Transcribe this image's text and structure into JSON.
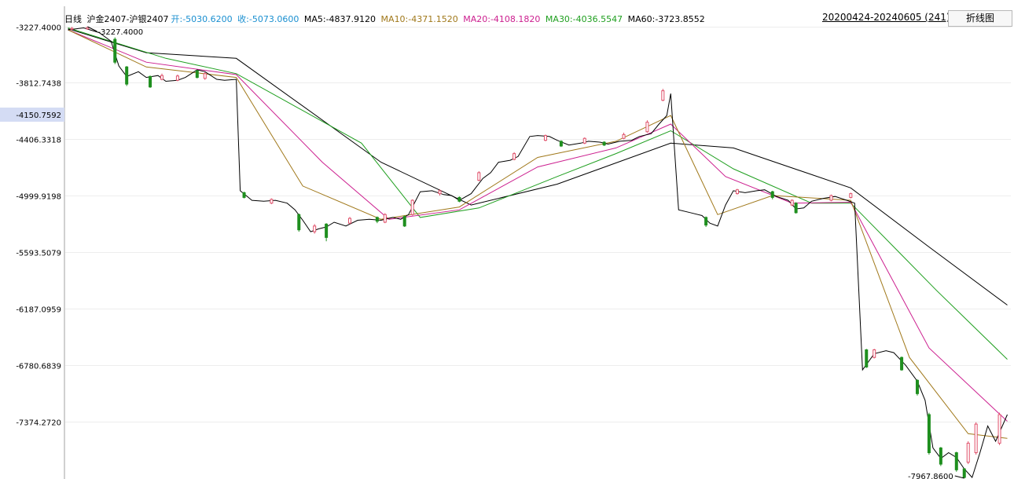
{
  "header": {
    "period": "日线",
    "symbol": "沪金2407-沪银2407",
    "open_label": "开:",
    "open_value": "-5030.6200",
    "close_label": "收:",
    "close_value": "-5073.0600",
    "ma5_label": "MA5:",
    "ma5_value": "-4837.9120",
    "ma10_label": "MA10:",
    "ma10_value": "-4371.1520",
    "ma20_label": "MA20:",
    "ma20_value": "-4108.1820",
    "ma30_label": "MA30:",
    "ma30_value": "-4036.5547",
    "ma60_label": "MA60:",
    "ma60_value": "-3723.8552",
    "range": "20200424-20240605 (241)",
    "toggle_button": "折线图"
  },
  "colors": {
    "up": "#e0506a",
    "down": "#1f8f1f",
    "open": "#1a8fd0",
    "close": "#1a8fd0",
    "ma5": "#000000",
    "ma10": "#a0781a",
    "ma20": "#cc1f8f",
    "ma30": "#1f9f1f",
    "ma60": "#000000",
    "crosshair_bg": "#d4dcf4"
  },
  "chart_data": {
    "type": "candlestick",
    "bars": 241,
    "y_ticks": [
      "-3227.4000",
      "-3812.7438",
      "-4406.3318",
      "-4999.9198",
      "-5593.5079",
      "-6187.0959",
      "-6780.6839",
      "-7374.2720"
    ],
    "ylim": [
      -8050,
      -3227.4
    ],
    "crosshair_value": "-4150.7592",
    "high_label": "-3227.4000",
    "low_label": "-7967.8600",
    "close_path": [
      [
        0,
        -3260
      ],
      [
        4,
        -3240
      ],
      [
        8,
        -3290
      ],
      [
        11,
        -3380
      ],
      [
        13,
        -3640
      ],
      [
        15,
        -3750
      ],
      [
        18,
        -3700
      ],
      [
        20,
        -3760
      ],
      [
        23,
        -3740
      ],
      [
        25,
        -3800
      ],
      [
        28,
        -3790
      ],
      [
        30,
        -3760
      ],
      [
        33,
        -3680
      ],
      [
        35,
        -3700
      ],
      [
        38,
        -3780
      ],
      [
        40,
        -3790
      ],
      [
        43,
        -3780
      ],
      [
        44,
        -4950
      ],
      [
        47,
        -5050
      ],
      [
        50,
        -5060
      ],
      [
        53,
        -5050
      ],
      [
        56,
        -5080
      ],
      [
        58,
        -5150
      ],
      [
        60,
        -5260
      ],
      [
        62,
        -5380
      ],
      [
        64,
        -5350
      ],
      [
        66,
        -5330
      ],
      [
        68,
        -5280
      ],
      [
        71,
        -5320
      ],
      [
        74,
        -5260
      ],
      [
        77,
        -5250
      ],
      [
        80,
        -5260
      ],
      [
        83,
        -5230
      ],
      [
        85,
        -5250
      ],
      [
        87,
        -5200
      ],
      [
        90,
        -4960
      ],
      [
        93,
        -4950
      ],
      [
        96,
        -4990
      ],
      [
        98,
        -5000
      ],
      [
        100,
        -5050
      ],
      [
        103,
        -4980
      ],
      [
        106,
        -4820
      ],
      [
        108,
        -4760
      ],
      [
        110,
        -4650
      ],
      [
        113,
        -4630
      ],
      [
        115,
        -4590
      ],
      [
        118,
        -4380
      ],
      [
        120,
        -4370
      ],
      [
        123,
        -4380
      ],
      [
        125,
        -4420
      ],
      [
        128,
        -4470
      ],
      [
        131,
        -4450
      ],
      [
        133,
        -4430
      ],
      [
        136,
        -4440
      ],
      [
        138,
        -4460
      ],
      [
        141,
        -4430
      ],
      [
        144,
        -4420
      ],
      [
        146,
        -4380
      ],
      [
        149,
        -4350
      ],
      [
        151,
        -4250
      ],
      [
        153,
        -4160
      ],
      [
        154,
        -3930
      ],
      [
        156,
        -5150
      ],
      [
        159,
        -5180
      ],
      [
        162,
        -5210
      ],
      [
        164,
        -5290
      ],
      [
        166,
        -5320
      ],
      [
        168,
        -5100
      ],
      [
        170,
        -4950
      ],
      [
        173,
        -4970
      ],
      [
        176,
        -4950
      ],
      [
        178,
        -4940
      ],
      [
        181,
        -5010
      ],
      [
        184,
        -5050
      ],
      [
        186,
        -5140
      ],
      [
        188,
        -5130
      ],
      [
        190,
        -5060
      ],
      [
        193,
        -5030
      ],
      [
        196,
        -5010
      ],
      [
        199,
        -5050
      ],
      [
        201,
        -5080
      ],
      [
        203,
        -6830
      ],
      [
        206,
        -6660
      ],
      [
        209,
        -6630
      ],
      [
        211,
        -6650
      ],
      [
        214,
        -6780
      ],
      [
        217,
        -6950
      ],
      [
        219,
        -7150
      ],
      [
        221,
        -7650
      ],
      [
        223,
        -7760
      ],
      [
        225,
        -7700
      ],
      [
        227,
        -7750
      ],
      [
        229,
        -7870
      ],
      [
        231,
        -7960
      ],
      [
        233,
        -7700
      ],
      [
        235,
        -7420
      ],
      [
        237,
        -7580
      ],
      [
        240,
        -7300
      ]
    ],
    "up_candles": [
      [
        1,
        -3255,
        -3245,
        -3230,
        -3265
      ],
      [
        5,
        -3250,
        -3235,
        -3227.4,
        -3260
      ],
      [
        24,
        -3780,
        -3740,
        -3720,
        -3790
      ],
      [
        28,
        -3790,
        -3745,
        -3730,
        -3800
      ],
      [
        35,
        -3770,
        -3720,
        -3705,
        -3785
      ],
      [
        52,
        -5080,
        -5040,
        -5030,
        -5090
      ],
      [
        63,
        -5380,
        -5320,
        -5300,
        -5400
      ],
      [
        72,
        -5290,
        -5240,
        -5225,
        -5300
      ],
      [
        81,
        -5280,
        -5200,
        -5185,
        -5290
      ],
      [
        88,
        -5200,
        -5050,
        -5040,
        -5210
      ],
      [
        95,
        -4980,
        -4950,
        -4935,
        -5000
      ],
      [
        105,
        -4840,
        -4760,
        -4745,
        -4850
      ],
      [
        114,
        -4620,
        -4560,
        -4545,
        -4630
      ],
      [
        122,
        -4420,
        -4370,
        -4360,
        -4430
      ],
      [
        132,
        -4450,
        -4400,
        -4390,
        -4460
      ],
      [
        142,
        -4400,
        -4360,
        -4340,
        -4410
      ],
      [
        148,
        -4330,
        -4230,
        -4210,
        -4340
      ],
      [
        152,
        -4000,
        -3900,
        -3880,
        -4010
      ],
      [
        171,
        -4980,
        -4940,
        -4930,
        -4990
      ],
      [
        185,
        -5100,
        -5050,
        -5040,
        -5110
      ],
      [
        195,
        -5050,
        -5000,
        -4990,
        -5060
      ],
      [
        200,
        -5020,
        -4980,
        -4970,
        -5030
      ],
      [
        206,
        -6700,
        -6620,
        -6610,
        -6710
      ],
      [
        230,
        -7800,
        -7600,
        -7580,
        -7820
      ],
      [
        232,
        -7700,
        -7400,
        -7380,
        -7720
      ],
      [
        238,
        -7600,
        -7300,
        -7280,
        -7620
      ]
    ],
    "down_candles": [
      [
        12,
        -3360,
        -3600,
        -3340,
        -3620
      ],
      [
        15,
        -3650,
        -3830,
        -3640,
        -3850
      ],
      [
        21,
        -3750,
        -3860,
        -3740,
        -3870
      ],
      [
        33,
        -3690,
        -3760,
        -3680,
        -3770
      ],
      [
        45,
        -4970,
        -5020,
        -4960,
        -5030
      ],
      [
        59,
        -5200,
        -5360,
        -5190,
        -5380
      ],
      [
        66,
        -5300,
        -5440,
        -5290,
        -5480
      ],
      [
        79,
        -5230,
        -5270,
        -5220,
        -5290
      ],
      [
        86,
        -5220,
        -5320,
        -5210,
        -5330
      ],
      [
        100,
        -5020,
        -5060,
        -5010,
        -5070
      ],
      [
        126,
        -4430,
        -4480,
        -4420,
        -4490
      ],
      [
        137,
        -4440,
        -4470,
        -4430,
        -4480
      ],
      [
        163,
        -5230,
        -5310,
        -5220,
        -5330
      ],
      [
        180,
        -4960,
        -5020,
        -4950,
        -5040
      ],
      [
        186,
        -5080,
        -5180,
        -5070,
        -5190
      ],
      [
        204,
        -6620,
        -6800,
        -6610,
        -6810
      ],
      [
        213,
        -6700,
        -6830,
        -6690,
        -6840
      ],
      [
        217,
        -6940,
        -7080,
        -6930,
        -7100
      ],
      [
        220,
        -7300,
        -7700,
        -7280,
        -7720
      ],
      [
        223,
        -7650,
        -7820,
        -7640,
        -7840
      ],
      [
        227,
        -7700,
        -7880,
        -7690,
        -7900
      ],
      [
        229,
        -7870,
        -7960,
        -7860,
        -7967.86
      ]
    ],
    "ma10_path": [
      [
        0,
        -3260
      ],
      [
        20,
        -3650
      ],
      [
        43,
        -3760
      ],
      [
        60,
        -4900
      ],
      [
        80,
        -5250
      ],
      [
        100,
        -5120
      ],
      [
        120,
        -4600
      ],
      [
        140,
        -4430
      ],
      [
        154,
        -4160
      ],
      [
        166,
        -5200
      ],
      [
        180,
        -5000
      ],
      [
        200,
        -5050
      ],
      [
        215,
        -6700
      ],
      [
        230,
        -7500
      ],
      [
        240,
        -7550
      ]
    ],
    "ma20_path": [
      [
        0,
        -3260
      ],
      [
        20,
        -3600
      ],
      [
        43,
        -3730
      ],
      [
        65,
        -4650
      ],
      [
        82,
        -5250
      ],
      [
        100,
        -5150
      ],
      [
        120,
        -4700
      ],
      [
        140,
        -4500
      ],
      [
        154,
        -4250
      ],
      [
        168,
        -4800
      ],
      [
        185,
        -5080
      ],
      [
        200,
        -5070
      ],
      [
        220,
        -6600
      ],
      [
        240,
        -7370
      ]
    ],
    "ma30_path": [
      [
        0,
        -3240
      ],
      [
        25,
        -3560
      ],
      [
        43,
        -3720
      ],
      [
        75,
        -4450
      ],
      [
        90,
        -5230
      ],
      [
        105,
        -5130
      ],
      [
        125,
        -4800
      ],
      [
        140,
        -4560
      ],
      [
        154,
        -4320
      ],
      [
        170,
        -4720
      ],
      [
        190,
        -5080
      ],
      [
        200,
        -5080
      ],
      [
        222,
        -6000
      ],
      [
        240,
        -6720
      ]
    ],
    "ma60_path": [
      [
        0,
        -3250
      ],
      [
        20,
        -3500
      ],
      [
        43,
        -3560
      ],
      [
        80,
        -4650
      ],
      [
        103,
        -5100
      ],
      [
        125,
        -4880
      ],
      [
        154,
        -4450
      ],
      [
        170,
        -4500
      ],
      [
        200,
        -4920
      ],
      [
        220,
        -5540
      ],
      [
        240,
        -6150
      ]
    ]
  }
}
